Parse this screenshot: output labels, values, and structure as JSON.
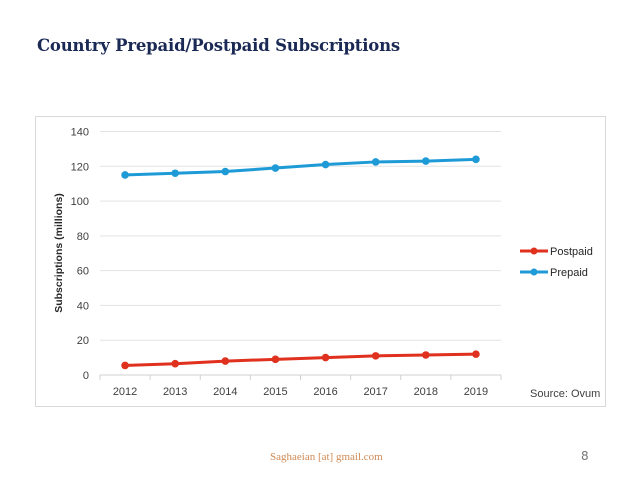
{
  "slide": {
    "title": "Country Prepaid/Postpaid Subscriptions",
    "footer_email": "Saghaeian [at] gmail.com",
    "page_number": "8"
  },
  "colors": {
    "title": "#1b2a55",
    "postpaid": "#e0301e",
    "prepaid": "#1e9bd7",
    "gridline": "#e3e3e3",
    "tick_text": "#404040"
  },
  "chart_data": {
    "type": "line",
    "title": "",
    "xlabel": "",
    "ylabel": "Subscriptions (millions)",
    "categories": [
      "2012",
      "2013",
      "2014",
      "2015",
      "2016",
      "2017",
      "2018",
      "2019"
    ],
    "ylim": [
      0,
      140
    ],
    "yticks": [
      0,
      20,
      40,
      60,
      80,
      100,
      120,
      140
    ],
    "grid": true,
    "legend_position": "right",
    "series": [
      {
        "name": "Postpaid",
        "color": "#e0301e",
        "values": [
          5.5,
          6.5,
          8,
          9,
          10,
          11,
          11.5,
          12
        ]
      },
      {
        "name": "Prepaid",
        "color": "#1e9bd7",
        "values": [
          115,
          116,
          117,
          119,
          121,
          122.5,
          123,
          124
        ]
      }
    ],
    "annotation": "Source: Ovum"
  }
}
